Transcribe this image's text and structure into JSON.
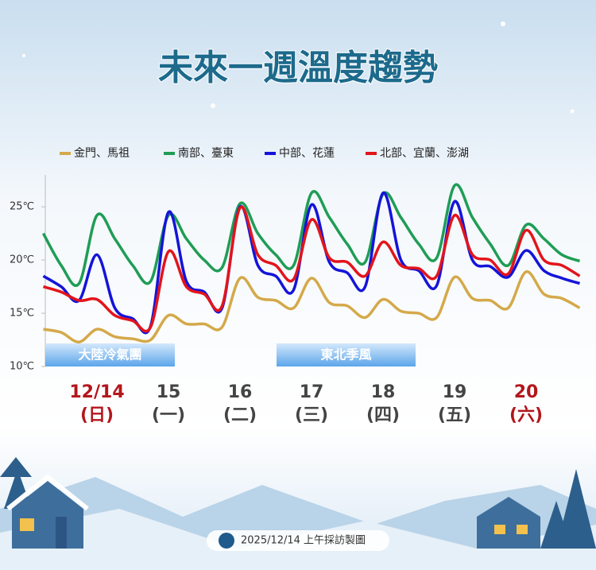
{
  "title": "未來一週溫度趨勢",
  "footer": "2025/12/14 上午採訪製圖",
  "chart_data": {
    "type": "line",
    "categories": [
      null,
      null,
      null,
      "12/14",
      null,
      null,
      null,
      "15",
      null,
      null,
      null,
      "16",
      null,
      null,
      null,
      "17",
      null,
      null,
      null,
      "18",
      null,
      null,
      null,
      "19",
      null,
      null,
      null,
      "20",
      null,
      null,
      null
    ],
    "weekdays": [
      null,
      null,
      null,
      "(日)",
      null,
      null,
      null,
      "(一)",
      null,
      null,
      null,
      "(二)",
      null,
      null,
      null,
      "(三)",
      null,
      null,
      null,
      "(四)",
      null,
      null,
      null,
      "(五)",
      null,
      null,
      null,
      "(六)",
      null,
      null,
      null
    ],
    "label_colors": [
      null,
      null,
      null,
      "#b3161b",
      null,
      null,
      null,
      "#444444",
      null,
      null,
      null,
      "#444444",
      null,
      null,
      null,
      "#444444",
      null,
      null,
      null,
      "#444444",
      null,
      null,
      null,
      "#444444",
      null,
      null,
      null,
      "#b3161b",
      null,
      null,
      null
    ],
    "ylim": [
      10,
      28
    ],
    "yticks": [
      {
        "value": 10,
        "label": "10℃"
      },
      {
        "value": 15,
        "label": "15℃"
      },
      {
        "value": 20,
        "label": "20℃"
      },
      {
        "value": 25,
        "label": "25℃"
      }
    ],
    "series": [
      {
        "name": "金門、馬祖",
        "color": "#d4a94a",
        "values": [
          13.5,
          13.2,
          12.3,
          13.5,
          12.8,
          12.6,
          12.5,
          14.8,
          14,
          14,
          13.7,
          18.3,
          16.5,
          16.2,
          15.5,
          18.3,
          16,
          15.7,
          14.6,
          16.3,
          15.2,
          15,
          14.6,
          18.4,
          16.4,
          16.2,
          15.5,
          18.9,
          16.8,
          16.4,
          15.5
        ]
      },
      {
        "name": "南部、臺東",
        "color": "#1f9d55",
        "values": [
          22.5,
          19.5,
          17.8,
          24.2,
          22,
          19.5,
          18,
          24.2,
          22,
          20,
          19.3,
          25.3,
          22.5,
          20.5,
          19.5,
          26.3,
          24,
          21.5,
          19.8,
          26.2,
          24,
          21.5,
          20.2,
          27,
          24,
          21.5,
          19.5,
          23.3,
          22,
          20.5,
          19.9
        ]
      },
      {
        "name": "中部、花蓮",
        "color": "#1414d9",
        "values": [
          18.5,
          17.5,
          16.2,
          20.5,
          15.5,
          14.5,
          13.8,
          24.5,
          18,
          17,
          15.5,
          25,
          19.5,
          18.5,
          17.2,
          25.2,
          19.8,
          18.8,
          17.5,
          26.3,
          20,
          19,
          17.6,
          25.5,
          20,
          19.4,
          18.4,
          20.9,
          19,
          18.3,
          17.8
        ]
      },
      {
        "name": "北部、宜蘭、澎湖",
        "color": "#e3141b",
        "values": [
          17.5,
          17,
          16.2,
          16.3,
          14.8,
          14.3,
          13.7,
          20.8,
          17.5,
          16.8,
          15.7,
          24.9,
          20.5,
          19.5,
          18.2,
          23.8,
          20.2,
          19.8,
          18.5,
          21.7,
          19.5,
          19.2,
          18.5,
          24.2,
          20.5,
          20,
          18.7,
          22.8,
          20,
          19.5,
          18.5
        ]
      }
    ],
    "annotations": [
      "大陸冷氣團",
      "東北季風"
    ]
  }
}
